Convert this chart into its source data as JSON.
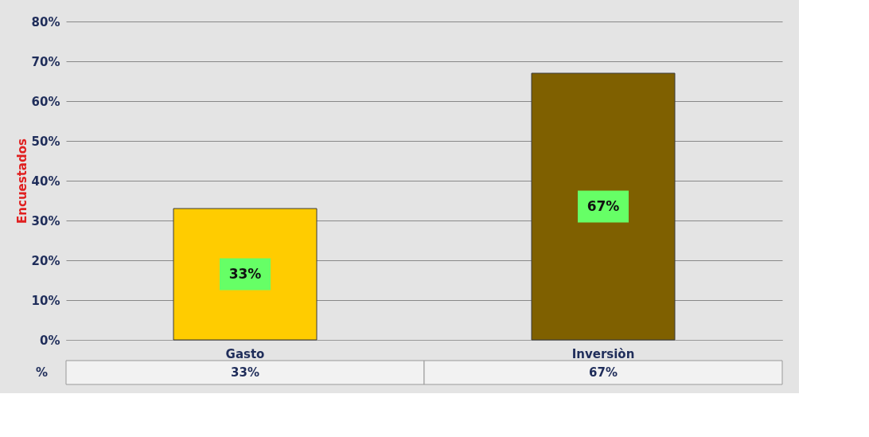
{
  "chart_data": {
    "type": "bar",
    "ylabel": "Encuestados",
    "categories": [
      "Gasto",
      "Inversiòn"
    ],
    "colors": [
      "#ffcc00",
      "#7f6000"
    ],
    "series": [
      {
        "name": "%",
        "values": [
          33,
          67
        ]
      }
    ],
    "value_labels": [
      "33%",
      "67%"
    ],
    "ylim": [
      0,
      80
    ],
    "yticks": [
      {
        "value": 0,
        "label": "0%"
      },
      {
        "value": 10,
        "label": "10%"
      },
      {
        "value": 20,
        "label": "20%"
      },
      {
        "value": 30,
        "label": "30%"
      },
      {
        "value": 40,
        "label": "40%"
      },
      {
        "value": 50,
        "label": "50%"
      },
      {
        "value": 60,
        "label": "60%"
      },
      {
        "value": 70,
        "label": "70%"
      },
      {
        "value": 80,
        "label": "80%"
      }
    ],
    "grid": "y",
    "legend": false
  }
}
